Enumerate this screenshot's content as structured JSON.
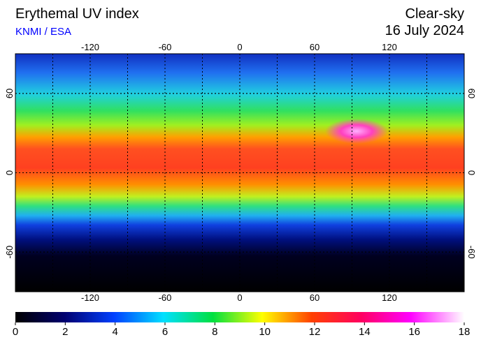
{
  "header": {
    "title": "Erythemal UV index",
    "source": "KNMI / ESA",
    "condition": "Clear-sky",
    "date": "16 July 2024"
  },
  "map": {
    "lonlim": [
      -180,
      180
    ],
    "latlim": [
      -90,
      90
    ],
    "lon_ticks": [
      -120,
      -60,
      0,
      60,
      120
    ],
    "lat_ticks": [
      -60,
      0,
      60
    ]
  },
  "colorbar": {
    "range": [
      0,
      18
    ],
    "ticks": [
      0,
      2,
      4,
      6,
      8,
      10,
      12,
      14,
      16,
      18
    ]
  }
}
